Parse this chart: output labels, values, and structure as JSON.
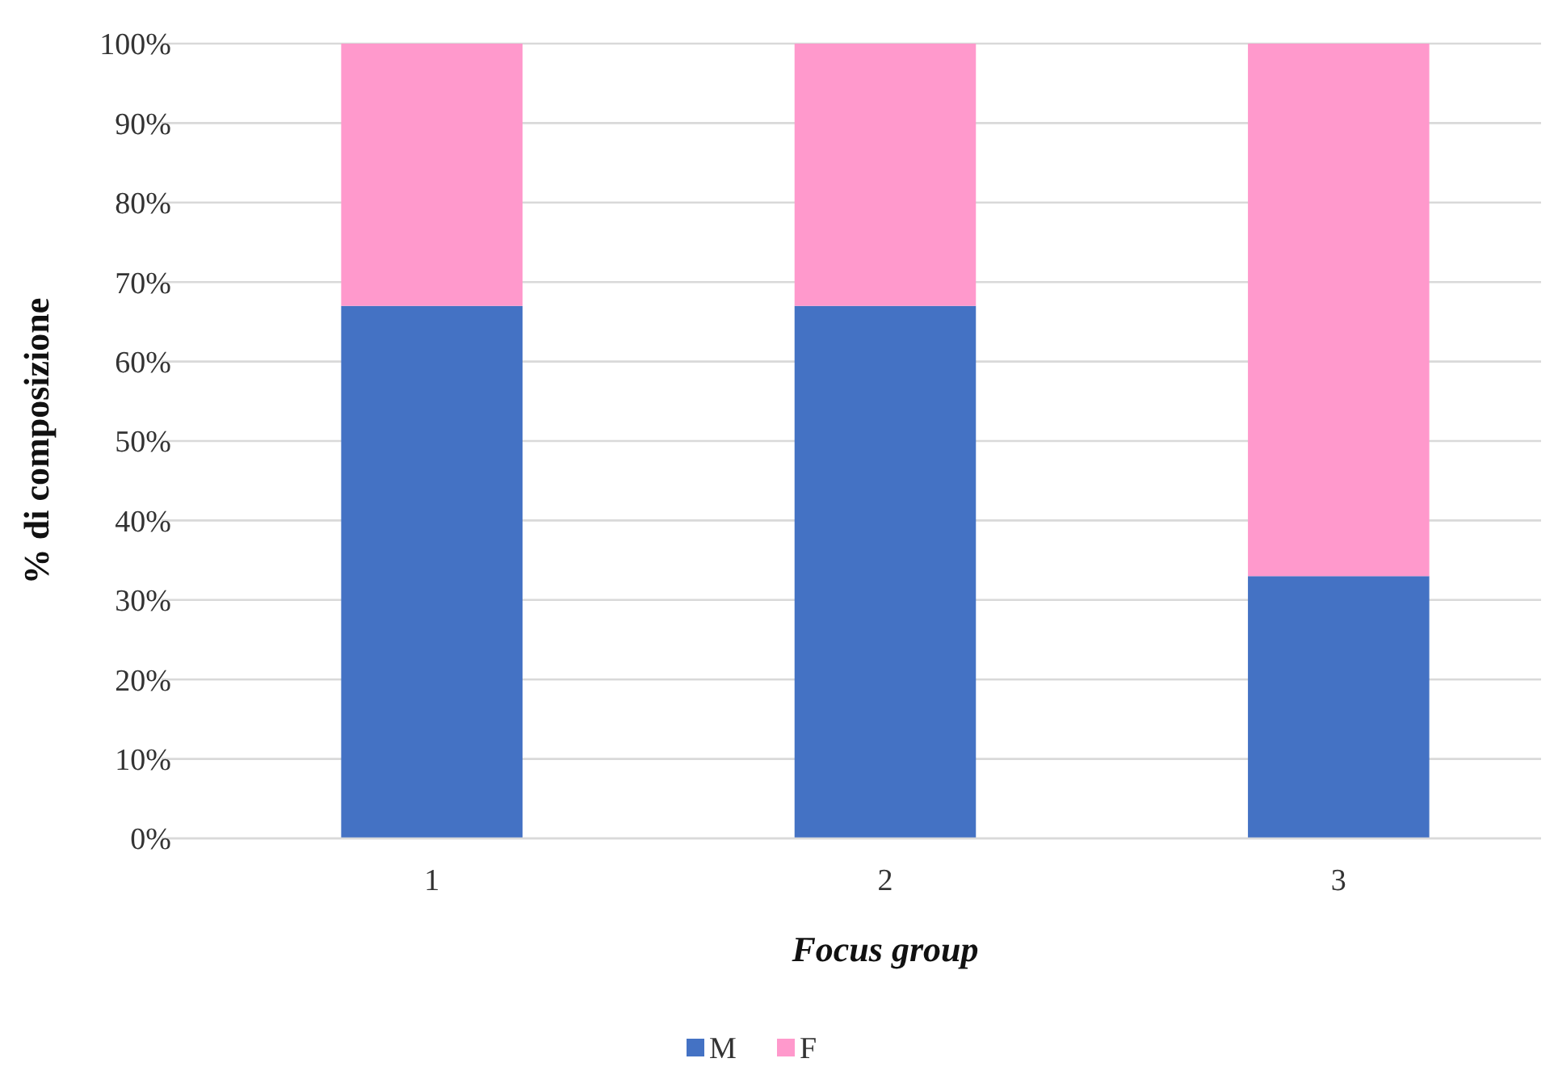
{
  "chart_data": {
    "type": "bar",
    "stacked": true,
    "xlabel": "Focus group",
    "ylabel": "% di composizione",
    "categories": [
      "1",
      "2",
      "3"
    ],
    "series": [
      {
        "name": "M",
        "color": "#4472c4",
        "values": [
          67,
          67,
          33
        ]
      },
      {
        "name": "F",
        "color": "#ff99cc",
        "values": [
          33,
          33,
          67
        ]
      }
    ],
    "ylim": [
      0,
      100
    ],
    "yticks": [
      {
        "value": 0,
        "label": "0%"
      },
      {
        "value": 10,
        "label": "10%"
      },
      {
        "value": 20,
        "label": "20%"
      },
      {
        "value": 30,
        "label": "30%"
      },
      {
        "value": 40,
        "label": "40%"
      },
      {
        "value": 50,
        "label": "50%"
      },
      {
        "value": 60,
        "label": "60%"
      },
      {
        "value": 70,
        "label": "70%"
      },
      {
        "value": 80,
        "label": "80%"
      },
      {
        "value": 90,
        "label": "90%"
      },
      {
        "value": 100,
        "label": "100%"
      }
    ],
    "grid": "y",
    "legend": "bottom"
  }
}
